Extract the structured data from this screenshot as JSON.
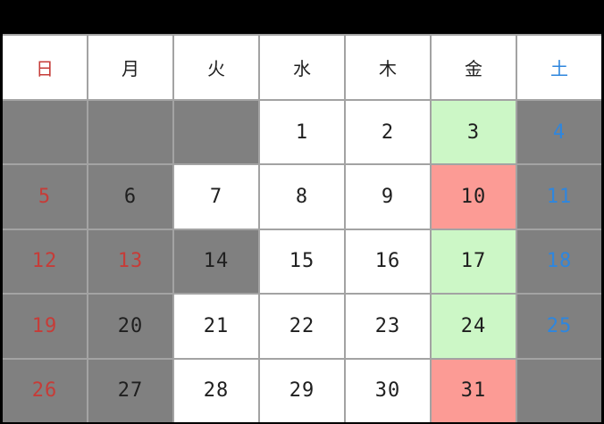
{
  "colors": {
    "frame": "#000000",
    "grid_line": "#a3a3a3",
    "cell_white": "#ffffff",
    "cell_gray": "#808080",
    "cell_green": "#ccf7c6",
    "cell_pink": "#fc9b95",
    "text_black": "#1f1f1f",
    "text_red": "#c63c38",
    "text_blue": "#2e86de"
  },
  "weekday_header": [
    {
      "key": "sun",
      "label": "日",
      "fg": "red"
    },
    {
      "key": "mon",
      "label": "月",
      "fg": "black"
    },
    {
      "key": "tue",
      "label": "火",
      "fg": "black"
    },
    {
      "key": "wed",
      "label": "水",
      "fg": "black"
    },
    {
      "key": "thu",
      "label": "木",
      "fg": "black"
    },
    {
      "key": "fri",
      "label": "金",
      "fg": "black"
    },
    {
      "key": "sat",
      "label": "土",
      "fg": "blue"
    }
  ],
  "weeks": [
    [
      {
        "day": "",
        "bg": "gray",
        "fg": "black"
      },
      {
        "day": "",
        "bg": "gray",
        "fg": "black"
      },
      {
        "day": "",
        "bg": "gray",
        "fg": "black"
      },
      {
        "day": "1",
        "bg": "white",
        "fg": "black"
      },
      {
        "day": "2",
        "bg": "white",
        "fg": "black"
      },
      {
        "day": "3",
        "bg": "green",
        "fg": "black"
      },
      {
        "day": "4",
        "bg": "gray",
        "fg": "blue"
      }
    ],
    [
      {
        "day": "5",
        "bg": "gray",
        "fg": "red"
      },
      {
        "day": "6",
        "bg": "gray",
        "fg": "black"
      },
      {
        "day": "7",
        "bg": "white",
        "fg": "black"
      },
      {
        "day": "8",
        "bg": "white",
        "fg": "black"
      },
      {
        "day": "9",
        "bg": "white",
        "fg": "black"
      },
      {
        "day": "10",
        "bg": "pink",
        "fg": "black"
      },
      {
        "day": "11",
        "bg": "gray",
        "fg": "blue"
      }
    ],
    [
      {
        "day": "12",
        "bg": "gray",
        "fg": "red"
      },
      {
        "day": "13",
        "bg": "gray",
        "fg": "red"
      },
      {
        "day": "14",
        "bg": "gray",
        "fg": "black"
      },
      {
        "day": "15",
        "bg": "white",
        "fg": "black"
      },
      {
        "day": "16",
        "bg": "white",
        "fg": "black"
      },
      {
        "day": "17",
        "bg": "green",
        "fg": "black"
      },
      {
        "day": "18",
        "bg": "gray",
        "fg": "blue"
      }
    ],
    [
      {
        "day": "19",
        "bg": "gray",
        "fg": "red"
      },
      {
        "day": "20",
        "bg": "gray",
        "fg": "black"
      },
      {
        "day": "21",
        "bg": "white",
        "fg": "black"
      },
      {
        "day": "22",
        "bg": "white",
        "fg": "black"
      },
      {
        "day": "23",
        "bg": "white",
        "fg": "black"
      },
      {
        "day": "24",
        "bg": "green",
        "fg": "black"
      },
      {
        "day": "25",
        "bg": "gray",
        "fg": "blue"
      }
    ],
    [
      {
        "day": "26",
        "bg": "gray",
        "fg": "red"
      },
      {
        "day": "27",
        "bg": "gray",
        "fg": "black"
      },
      {
        "day": "28",
        "bg": "white",
        "fg": "black"
      },
      {
        "day": "29",
        "bg": "white",
        "fg": "black"
      },
      {
        "day": "30",
        "bg": "white",
        "fg": "black"
      },
      {
        "day": "31",
        "bg": "pink",
        "fg": "black"
      },
      {
        "day": "",
        "bg": "gray",
        "fg": "black"
      }
    ]
  ]
}
